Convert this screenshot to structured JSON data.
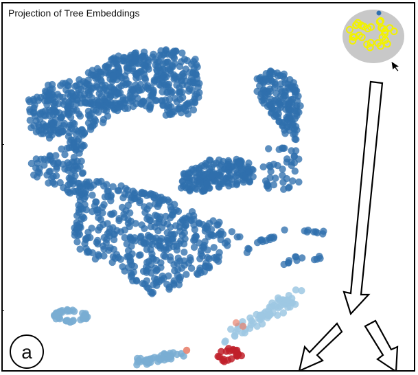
{
  "figure": {
    "title": "Projection of Tree Embeddings",
    "panel_label": "a"
  },
  "colors": {
    "main_cluster": "#2f6fad",
    "light_cluster": "#79add2",
    "mid_cluster": "#9ec8e3",
    "highlight_red": "#c0202a",
    "highlight_salmon": "#e8826e",
    "selection_fill": "#c8c8c8",
    "selection_ring": "#f2f200",
    "arrow_fill": "#ffffff",
    "arrow_stroke": "#000000"
  },
  "icons": {
    "cursor": "mouse-pointer-icon",
    "arrows": [
      "down-arrow-icon",
      "down-left-arrow-icon",
      "down-right-arrow-icon"
    ]
  },
  "chart_data": {
    "type": "scatter",
    "title": "Projection of Tree Embeddings",
    "xlabel": "",
    "ylabel": "",
    "grid": false,
    "legend": "none",
    "annotations": [
      "a"
    ],
    "clusters": [
      {
        "shape": "upper-left band",
        "color_key": "main_cluster",
        "points": 620
      },
      {
        "shape": "right upper arm",
        "color_key": "main_cluster",
        "points": 160
      },
      {
        "shape": "central lower mass",
        "color_key": "main_cluster",
        "points": 520
      },
      {
        "shape": "middle right patch",
        "color_key": "main_cluster",
        "points": 180
      },
      {
        "shape": "small right strands",
        "color_key": "main_cluster",
        "points": 40
      },
      {
        "shape": "bottom-left loop",
        "color_key": "light_cluster",
        "points": 45
      },
      {
        "shape": "bottom strip",
        "color_key": "light_cluster",
        "points": 40
      },
      {
        "shape": "bottom diagonal tail",
        "color_key": "mid_cluster",
        "points": 70
      },
      {
        "shape": "red highlight group",
        "color_key": "highlight_red",
        "points": 22
      }
    ],
    "inset": {
      "label": "selection preview",
      "color_key": "selection_ring",
      "points": 30
    }
  }
}
